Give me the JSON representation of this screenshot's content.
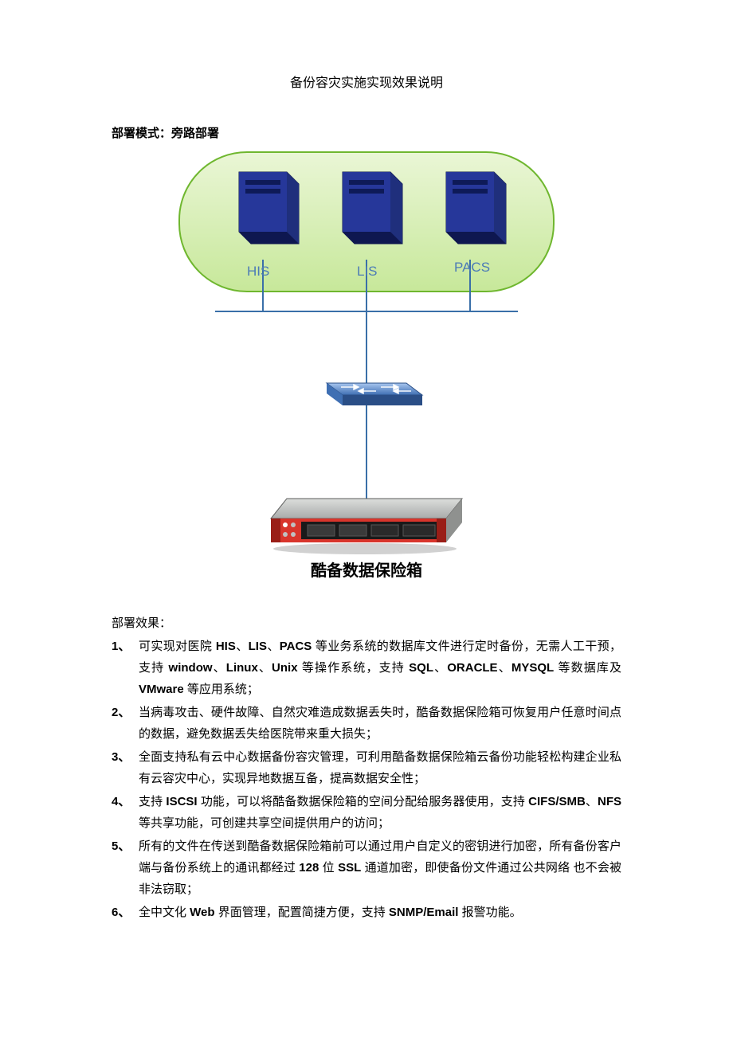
{
  "title": "备份容灾实施实现效果说明",
  "deploy_mode_label": "部署模式：旁路部署",
  "diagram": {
    "cloud": {
      "fill_top": "#eaf6d6",
      "fill_bottom": "#c7e89a",
      "stroke": "#6fb72f",
      "rx": 90
    },
    "server_labels": [
      "HIS",
      "LIS",
      "PACS"
    ],
    "server_label_color": "#4b7bb6",
    "server_label_fontsize": 17,
    "server_box": {
      "fill_light": "#6e7fcf",
      "fill_dark": "#1f2f7c",
      "face": "#26379a",
      "stroke": "#101a4d"
    },
    "line_color": "#3a6fa8",
    "line_width": 2,
    "switch": {
      "fill_top": "#a7c6ef",
      "fill_bottom": "#3f6fb3",
      "stroke": "#2a4e86"
    },
    "appliance": {
      "body_top": "#dcdedc",
      "body_bottom": "#a9abaa",
      "front": "#d9352c",
      "black": "#1a1a1a",
      "stroke": "#5c5c5c"
    },
    "appliance_label": "酷备数据保险箱",
    "appliance_label_color": "#000000",
    "appliance_label_fontsize": 20
  },
  "effects_label": "部署效果：",
  "items": [
    {
      "num": "1、",
      "segments": [
        {
          "t": "可实现对医院 ",
          "b": false
        },
        {
          "t": "HIS",
          "b": true
        },
        {
          "t": "、",
          "b": false
        },
        {
          "t": "LIS",
          "b": true
        },
        {
          "t": "、",
          "b": false
        },
        {
          "t": "PACS",
          "b": true
        },
        {
          "t": " 等业务系统的数据库文件进行定时备份，无需人工干预，支持 ",
          "b": false
        },
        {
          "t": "window",
          "b": true
        },
        {
          "t": "、",
          "b": false
        },
        {
          "t": "Linux",
          "b": true
        },
        {
          "t": "、",
          "b": false
        },
        {
          "t": "Unix",
          "b": true
        },
        {
          "t": " 等操作系统，支持 ",
          "b": false
        },
        {
          "t": "SQL",
          "b": true
        },
        {
          "t": "、",
          "b": false
        },
        {
          "t": "ORACLE",
          "b": true
        },
        {
          "t": "、",
          "b": false
        },
        {
          "t": "MYSQL",
          "b": true
        },
        {
          "t": " 等数据库及 ",
          "b": false
        },
        {
          "t": "VMware",
          "b": true
        },
        {
          "t": " 等应用系统；",
          "b": false
        }
      ]
    },
    {
      "num": "2、",
      "segments": [
        {
          "t": "当病毒攻击、硬件故障、自然灾难造成数据丢失时，酷备数据保险箱可恢复用户任意时间点的数据，避免数据丢失给医院带来重大损失；",
          "b": false
        }
      ]
    },
    {
      "num": "3、",
      "segments": [
        {
          "t": "全面支持私有云中心数据备份容灾管理，可利用酷备数据保险箱云备份功能轻松构建企业私有云容灾中心，实现异地数据互备，提高数据安全性；",
          "b": false
        }
      ]
    },
    {
      "num": "4、",
      "segments": [
        {
          "t": "支持 ",
          "b": false
        },
        {
          "t": "ISCSI",
          "b": true
        },
        {
          "t": " 功能，可以将酷备数据保险箱的空间分配给服务器使用，支持 ",
          "b": false
        },
        {
          "t": "CIFS/SMB",
          "b": true
        },
        {
          "t": "、",
          "b": false
        },
        {
          "t": "NFS",
          "b": true
        },
        {
          "t": " 等共享功能，可创建共享空间提供用户的访问；",
          "b": false
        }
      ]
    },
    {
      "num": "5、",
      "segments": [
        {
          "t": "所有的文件在传送到酷备数据保险箱前可以通过用户自定义的密钥进行加密，所有备份客户端与备份系统上的通讯都经过 ",
          "b": false
        },
        {
          "t": "128",
          "b": true
        },
        {
          "t": " 位 ",
          "b": false
        },
        {
          "t": "SSL",
          "b": true
        },
        {
          "t": " 通道加密，即使备份文件通过公共网络  也不会被非法窃取；",
          "b": false
        }
      ]
    },
    {
      "num": "6、",
      "segments": [
        {
          "t": "全中文化 ",
          "b": false
        },
        {
          "t": "Web",
          "b": true
        },
        {
          "t": " 界面管理，配置简捷方便，支持 ",
          "b": false
        },
        {
          "t": "SNMP/Email",
          "b": true
        },
        {
          "t": " 报警功能。",
          "b": false
        }
      ]
    }
  ]
}
